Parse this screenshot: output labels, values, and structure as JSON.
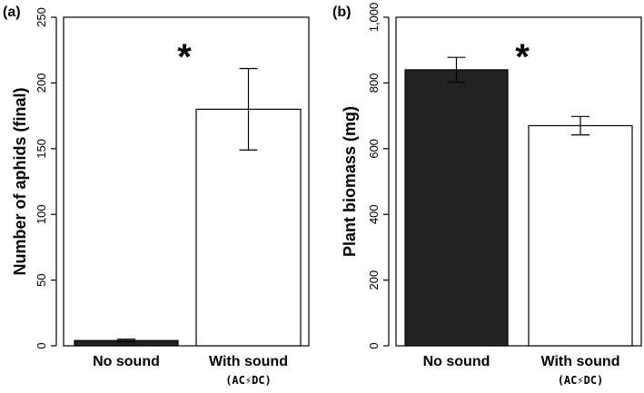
{
  "chart_data": [
    {
      "type": "bar",
      "panel_label": "(a)",
      "categories": [
        "No sound",
        "With sound"
      ],
      "category_sublabels": [
        "",
        "(AC⚡DC)"
      ],
      "values": [
        4,
        180
      ],
      "errors": [
        1,
        31
      ],
      "bar_colors": [
        "#222222",
        "#ffffff"
      ],
      "ylabel": "Number of aphids (final)",
      "ylim": [
        0,
        250
      ],
      "yticks": [
        0,
        50,
        100,
        150,
        200,
        250
      ],
      "ytick_labels": [
        "0",
        "50",
        "100",
        "150",
        "200",
        "250"
      ],
      "annotation": "*",
      "grid": false
    },
    {
      "type": "bar",
      "panel_label": "(b)",
      "categories": [
        "No sound",
        "With sound"
      ],
      "category_sublabels": [
        "",
        "(AC⚡DC)"
      ],
      "values": [
        840,
        670
      ],
      "errors": [
        38,
        28
      ],
      "bar_colors": [
        "#222222",
        "#ffffff"
      ],
      "ylabel": "Plant biomass (mg)",
      "ylim": [
        0,
        1000
      ],
      "yticks": [
        0,
        200,
        400,
        600,
        800,
        1000
      ],
      "ytick_labels": [
        "0",
        "200",
        "400",
        "600",
        "800",
        "1,000"
      ],
      "annotation": "*",
      "grid": false
    }
  ]
}
